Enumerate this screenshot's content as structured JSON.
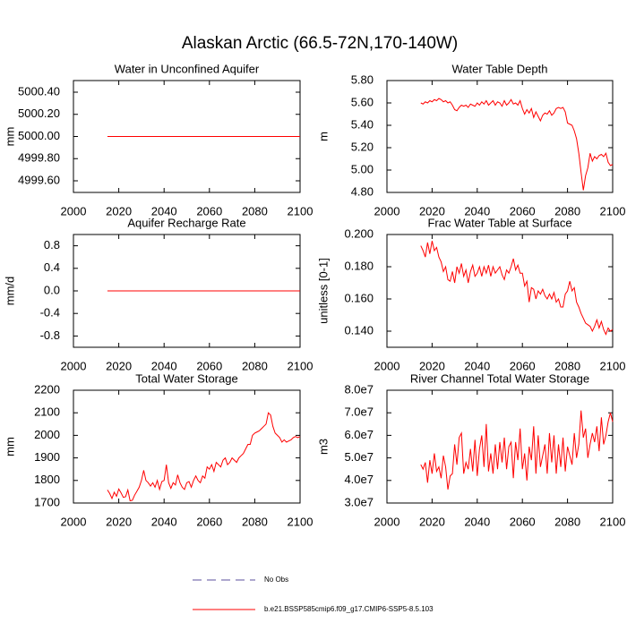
{
  "title": "Alaskan Arctic (66.5-72N,170-140W)",
  "legend": [
    {
      "name": "No Obs",
      "color": "#5b4f9c",
      "dashed": true
    },
    {
      "name": "b.e21.BSSP585cmip6.f09_g17.CMIP6-SSP5-8.5.103",
      "color": "#ff0000",
      "dashed": false
    }
  ],
  "chart_data": [
    {
      "type": "line",
      "title": "Water in Unconfined Aquifer",
      "y_label": "mm",
      "color": "#ff0000",
      "xlim": [
        2000,
        2100
      ],
      "xticks": [
        2000,
        2020,
        2040,
        2060,
        2080,
        2100
      ],
      "ylim": [
        4999.495,
        5000.505
      ],
      "yticks": [
        {
          "value": 4999.6,
          "label": "4999.60"
        },
        {
          "value": 4999.8,
          "label": "4999.80"
        },
        {
          "value": 5000,
          "label": "5000.00"
        },
        {
          "value": 5000.2,
          "label": "5000.20"
        },
        {
          "value": 5000.4,
          "label": "5000.40"
        }
      ],
      "x": [
        2015,
        2016,
        2017,
        2018,
        2019,
        2020,
        2021,
        2022,
        2023,
        2024,
        2025,
        2026,
        2027,
        2028,
        2029,
        2030,
        2031,
        2032,
        2033,
        2034,
        2035,
        2036,
        2037,
        2038,
        2039,
        2040,
        2041,
        2042,
        2043,
        2044,
        2045,
        2046,
        2047,
        2048,
        2049,
        2050,
        2051,
        2052,
        2053,
        2054,
        2055,
        2056,
        2057,
        2058,
        2059,
        2060,
        2061,
        2062,
        2063,
        2064,
        2065,
        2066,
        2067,
        2068,
        2069,
        2070,
        2071,
        2072,
        2073,
        2074,
        2075,
        2076,
        2077,
        2078,
        2079,
        2080,
        2081,
        2082,
        2083,
        2084,
        2085,
        2086,
        2087,
        2088,
        2089,
        2090,
        2091,
        2092,
        2093,
        2094,
        2095,
        2096,
        2097,
        2098,
        2099,
        2100
      ],
      "values": [
        5000,
        5000,
        5000,
        5000,
        5000,
        5000,
        5000,
        5000,
        5000,
        5000,
        5000,
        5000,
        5000,
        5000,
        5000,
        5000,
        5000,
        5000,
        5000,
        5000,
        5000,
        5000,
        5000,
        5000,
        5000,
        5000,
        5000,
        5000,
        5000,
        5000,
        5000,
        5000,
        5000,
        5000,
        5000,
        5000,
        5000,
        5000,
        5000,
        5000,
        5000,
        5000,
        5000,
        5000,
        5000,
        5000,
        5000,
        5000,
        5000,
        5000,
        5000,
        5000,
        5000,
        5000,
        5000,
        5000,
        5000,
        5000,
        5000,
        5000,
        5000,
        5000,
        5000,
        5000,
        5000,
        5000,
        5000,
        5000,
        5000,
        5000,
        5000,
        5000,
        5000,
        5000,
        5000,
        5000,
        5000,
        5000,
        5000,
        5000,
        5000,
        5000,
        5000,
        5000,
        5000,
        5000
      ]
    },
    {
      "type": "line",
      "title": "Water Table Depth",
      "y_label": "m",
      "color": "#ff0000",
      "xlim": [
        2000,
        2100
      ],
      "xticks": [
        2000,
        2020,
        2040,
        2060,
        2080,
        2100
      ],
      "ylim": [
        4.8,
        5.8
      ],
      "yticks": [
        {
          "value": 4.8,
          "label": "4.80"
        },
        {
          "value": 5.0,
          "label": "5.00"
        },
        {
          "value": 5.2,
          "label": "5.20"
        },
        {
          "value": 5.4,
          "label": "5.40"
        },
        {
          "value": 5.6,
          "label": "5.60"
        },
        {
          "value": 5.8,
          "label": "5.80"
        }
      ],
      "x": [
        2015,
        2016,
        2017,
        2018,
        2019,
        2020,
        2021,
        2022,
        2023,
        2024,
        2025,
        2026,
        2027,
        2028,
        2029,
        2030,
        2031,
        2032,
        2033,
        2034,
        2035,
        2036,
        2037,
        2038,
        2039,
        2040,
        2041,
        2042,
        2043,
        2044,
        2045,
        2046,
        2047,
        2048,
        2049,
        2050,
        2051,
        2052,
        2053,
        2054,
        2055,
        2056,
        2057,
        2058,
        2059,
        2060,
        2061,
        2062,
        2063,
        2064,
        2065,
        2066,
        2067,
        2068,
        2069,
        2070,
        2071,
        2072,
        2073,
        2074,
        2075,
        2076,
        2077,
        2078,
        2079,
        2080,
        2081,
        2082,
        2083,
        2084,
        2085,
        2086,
        2087,
        2088,
        2089,
        2090,
        2091,
        2092,
        2093,
        2094,
        2095,
        2096,
        2097,
        2098,
        2099,
        2100
      ],
      "values": [
        5.6,
        5.59,
        5.61,
        5.6,
        5.62,
        5.61,
        5.63,
        5.62,
        5.64,
        5.63,
        5.61,
        5.62,
        5.6,
        5.61,
        5.58,
        5.54,
        5.53,
        5.56,
        5.58,
        5.57,
        5.58,
        5.56,
        5.59,
        5.58,
        5.57,
        5.6,
        5.58,
        5.61,
        5.59,
        5.62,
        5.58,
        5.6,
        5.62,
        5.58,
        5.61,
        5.6,
        5.57,
        5.62,
        5.58,
        5.6,
        5.63,
        5.59,
        5.6,
        5.58,
        5.62,
        5.55,
        5.5,
        5.54,
        5.51,
        5.55,
        5.47,
        5.52,
        5.48,
        5.44,
        5.49,
        5.51,
        5.5,
        5.53,
        5.49,
        5.51,
        5.55,
        5.56,
        5.55,
        5.56,
        5.52,
        5.42,
        5.41,
        5.4,
        5.35,
        5.28,
        5.15,
        4.98,
        4.82,
        4.95,
        5.02,
        5.15,
        5.08,
        5.12,
        5.1,
        5.13,
        5.14,
        5.12,
        5.15,
        5.07,
        5.04,
        5.05
      ]
    },
    {
      "type": "line",
      "title": "Aquifer Recharge Rate",
      "y_label": "mm/d",
      "color": "#ff0000",
      "xlim": [
        2000,
        2100
      ],
      "xticks": [
        2000,
        2020,
        2040,
        2060,
        2080,
        2100
      ],
      "ylim": [
        -1,
        1
      ],
      "yticks": [
        -0.8,
        -0.4,
        {
          "value": 0,
          "label": "0.0"
        },
        0.4,
        0.8
      ],
      "x": [
        2015,
        2016,
        2017,
        2018,
        2019,
        2020,
        2021,
        2022,
        2023,
        2024,
        2025,
        2026,
        2027,
        2028,
        2029,
        2030,
        2031,
        2032,
        2033,
        2034,
        2035,
        2036,
        2037,
        2038,
        2039,
        2040,
        2041,
        2042,
        2043,
        2044,
        2045,
        2046,
        2047,
        2048,
        2049,
        2050,
        2051,
        2052,
        2053,
        2054,
        2055,
        2056,
        2057,
        2058,
        2059,
        2060,
        2061,
        2062,
        2063,
        2064,
        2065,
        2066,
        2067,
        2068,
        2069,
        2070,
        2071,
        2072,
        2073,
        2074,
        2075,
        2076,
        2077,
        2078,
        2079,
        2080,
        2081,
        2082,
        2083,
        2084,
        2085,
        2086,
        2087,
        2088,
        2089,
        2090,
        2091,
        2092,
        2093,
        2094,
        2095,
        2096,
        2097,
        2098,
        2099,
        2100
      ],
      "values": [
        0,
        0,
        0,
        0,
        0,
        0,
        0,
        0,
        0,
        0,
        0,
        0,
        0,
        0,
        0,
        0,
        0,
        0,
        0,
        0,
        0,
        0,
        0,
        0,
        0,
        0,
        0,
        0,
        0,
        0,
        0,
        0,
        0,
        0,
        0,
        0,
        0,
        0,
        0,
        0,
        0,
        0,
        0,
        0,
        0,
        0,
        0,
        0,
        0,
        0,
        0,
        0,
        0,
        0,
        0,
        0,
        0,
        0,
        0,
        0,
        0,
        0,
        0,
        0,
        0,
        0,
        0,
        0,
        0,
        0,
        0,
        0,
        0,
        0,
        0,
        0,
        0,
        0,
        0,
        0,
        0,
        0,
        0,
        0,
        0,
        0
      ]
    },
    {
      "type": "line",
      "title": "Frac Water Table at Surface",
      "y_label": "unitless [0-1]",
      "color": "#ff0000",
      "xlim": [
        2000,
        2100
      ],
      "xticks": [
        2000,
        2020,
        2040,
        2060,
        2080,
        2100
      ],
      "ylim": [
        0.13,
        0.2
      ],
      "yticks": [
        {
          "value": 0.14,
          "label": "0.140"
        },
        {
          "value": 0.16,
          "label": "0.160"
        },
        {
          "value": 0.18,
          "label": "0.180"
        },
        {
          "value": 0.2,
          "label": "0.200"
        }
      ],
      "x": [
        2015,
        2016,
        2017,
        2018,
        2019,
        2020,
        2021,
        2022,
        2023,
        2024,
        2025,
        2026,
        2027,
        2028,
        2029,
        2030,
        2031,
        2032,
        2033,
        2034,
        2035,
        2036,
        2037,
        2038,
        2039,
        2040,
        2041,
        2042,
        2043,
        2044,
        2045,
        2046,
        2047,
        2048,
        2049,
        2050,
        2051,
        2052,
        2053,
        2054,
        2055,
        2056,
        2057,
        2058,
        2059,
        2060,
        2061,
        2062,
        2063,
        2064,
        2065,
        2066,
        2067,
        2068,
        2069,
        2070,
        2071,
        2072,
        2073,
        2074,
        2075,
        2076,
        2077,
        2078,
        2079,
        2080,
        2081,
        2082,
        2083,
        2084,
        2085,
        2086,
        2087,
        2088,
        2089,
        2090,
        2091,
        2092,
        2093,
        2094,
        2095,
        2096,
        2097,
        2098,
        2099,
        2100
      ],
      "values": [
        0.193,
        0.19,
        0.186,
        0.195,
        0.188,
        0.196,
        0.19,
        0.192,
        0.186,
        0.183,
        0.177,
        0.18,
        0.172,
        0.171,
        0.177,
        0.17,
        0.18,
        0.176,
        0.182,
        0.174,
        0.178,
        0.17,
        0.177,
        0.181,
        0.174,
        0.176,
        0.18,
        0.174,
        0.18,
        0.176,
        0.181,
        0.174,
        0.18,
        0.176,
        0.178,
        0.18,
        0.175,
        0.172,
        0.178,
        0.176,
        0.18,
        0.185,
        0.178,
        0.181,
        0.176,
        0.176,
        0.168,
        0.171,
        0.158,
        0.167,
        0.166,
        0.16,
        0.165,
        0.163,
        0.166,
        0.162,
        0.16,
        0.163,
        0.16,
        0.164,
        0.158,
        0.16,
        0.155,
        0.155,
        0.163,
        0.165,
        0.171,
        0.165,
        0.167,
        0.158,
        0.155,
        0.151,
        0.148,
        0.145,
        0.144,
        0.143,
        0.14,
        0.143,
        0.147,
        0.142,
        0.146,
        0.141,
        0.138,
        0.142,
        0.14,
        0.141
      ]
    },
    {
      "type": "line",
      "title": "Total Water Storage",
      "y_label": "mm",
      "color": "#ff0000",
      "xlim": [
        2000,
        2100
      ],
      "xticks": [
        2000,
        2020,
        2040,
        2060,
        2080,
        2100
      ],
      "ylim": [
        1700,
        2200
      ],
      "yticks": [
        1700,
        1800,
        1900,
        2000,
        2100,
        2200
      ],
      "x": [
        2015,
        2016,
        2017,
        2018,
        2019,
        2020,
        2021,
        2022,
        2023,
        2024,
        2025,
        2026,
        2027,
        2028,
        2029,
        2030,
        2031,
        2032,
        2033,
        2034,
        2035,
        2036,
        2037,
        2038,
        2039,
        2040,
        2041,
        2042,
        2043,
        2044,
        2045,
        2046,
        2047,
        2048,
        2049,
        2050,
        2051,
        2052,
        2053,
        2054,
        2055,
        2056,
        2057,
        2058,
        2059,
        2060,
        2061,
        2062,
        2063,
        2064,
        2065,
        2066,
        2067,
        2068,
        2069,
        2070,
        2071,
        2072,
        2073,
        2074,
        2075,
        2076,
        2077,
        2078,
        2079,
        2080,
        2081,
        2082,
        2083,
        2084,
        2085,
        2086,
        2087,
        2088,
        2089,
        2090,
        2091,
        2092,
        2093,
        2094,
        2095,
        2096,
        2097,
        2098,
        2099,
        2100
      ],
      "values": [
        1758,
        1742,
        1720,
        1748,
        1730,
        1762,
        1745,
        1725,
        1728,
        1758,
        1710,
        1712,
        1735,
        1752,
        1770,
        1800,
        1845,
        1800,
        1790,
        1775,
        1790,
        1770,
        1800,
        1760,
        1795,
        1800,
        1870,
        1790,
        1765,
        1790,
        1780,
        1825,
        1790,
        1770,
        1760,
        1790,
        1795,
        1770,
        1800,
        1820,
        1800,
        1790,
        1820,
        1810,
        1860,
        1850,
        1870,
        1840,
        1880,
        1870,
        1860,
        1890,
        1900,
        1870,
        1880,
        1900,
        1890,
        1880,
        1900,
        1910,
        1920,
        1940,
        1960,
        1960,
        2000,
        2010,
        2015,
        2020,
        2030,
        2040,
        2050,
        2100,
        2090,
        2040,
        2010,
        2000,
        1990,
        1970,
        1980,
        1970,
        1975,
        1980,
        1990,
        1995,
        1990,
        1995
      ]
    },
    {
      "type": "line",
      "title": "River Channel Total Water Storage",
      "y_label": "m3",
      "color": "#ff0000",
      "xlim": [
        2000,
        2100
      ],
      "xticks": [
        2000,
        2020,
        2040,
        2060,
        2080,
        2100
      ],
      "ylim": [
        30000000.0,
        80000000.0
      ],
      "yticks": [
        {
          "value": 30000000.0,
          "label": "3.0e7"
        },
        {
          "value": 40000000.0,
          "label": "4.0e7"
        },
        {
          "value": 50000000.0,
          "label": "5.0e7"
        },
        {
          "value": 60000000.0,
          "label": "6.0e7"
        },
        {
          "value": 70000000.0,
          "label": "7.0e7"
        },
        {
          "value": 80000000.0,
          "label": "8.0e7"
        }
      ],
      "x": [
        2015,
        2016,
        2017,
        2018,
        2019,
        2020,
        2021,
        2022,
        2023,
        2024,
        2025,
        2026,
        2027,
        2028,
        2029,
        2030,
        2031,
        2032,
        2033,
        2034,
        2035,
        2036,
        2037,
        2038,
        2039,
        2040,
        2041,
        2042,
        2043,
        2044,
        2045,
        2046,
        2047,
        2048,
        2049,
        2050,
        2051,
        2052,
        2053,
        2054,
        2055,
        2056,
        2057,
        2058,
        2059,
        2060,
        2061,
        2062,
        2063,
        2064,
        2065,
        2066,
        2067,
        2068,
        2069,
        2070,
        2071,
        2072,
        2073,
        2074,
        2075,
        2076,
        2077,
        2078,
        2079,
        2080,
        2081,
        2082,
        2083,
        2084,
        2085,
        2086,
        2087,
        2088,
        2089,
        2090,
        2091,
        2092,
        2093,
        2094,
        2095,
        2096,
        2097,
        2098,
        2099,
        2100
      ],
      "values": [
        47000000.0,
        45000000.0,
        48000000.0,
        39000000.0,
        49000000.0,
        43000000.0,
        52000000.0,
        44000000.0,
        46000000.0,
        41000000.0,
        51000000.0,
        46000000.0,
        36000000.0,
        42000000.0,
        43000000.0,
        56000000.0,
        47000000.0,
        59000000.0,
        61000000.0,
        43000000.0,
        48000000.0,
        45000000.0,
        54000000.0,
        44000000.0,
        58000000.0,
        42000000.0,
        54000000.0,
        60000000.0,
        46000000.0,
        65000000.0,
        44000000.0,
        52000000.0,
        43000000.0,
        56000000.0,
        45000000.0,
        57000000.0,
        48000000.0,
        59000000.0,
        45000000.0,
        55000000.0,
        57000000.0,
        41000000.0,
        57000000.0,
        49000000.0,
        63000000.0,
        45000000.0,
        52000000.0,
        40000000.0,
        55000000.0,
        49000000.0,
        64000000.0,
        43000000.0,
        60000000.0,
        46000000.0,
        51000000.0,
        56000000.0,
        43000000.0,
        61000000.0,
        48000000.0,
        60000000.0,
        43000000.0,
        56000000.0,
        46000000.0,
        59000000.0,
        44000000.0,
        55000000.0,
        51000000.0,
        47000000.0,
        61000000.0,
        50000000.0,
        56000000.0,
        71000000.0,
        59000000.0,
        63000000.0,
        50000000.0,
        56000000.0,
        61000000.0,
        57000000.0,
        64000000.0,
        53000000.0,
        68000000.0,
        56000000.0,
        60000000.0,
        66000000.0,
        70000000.0,
        66000000.0
      ]
    }
  ]
}
